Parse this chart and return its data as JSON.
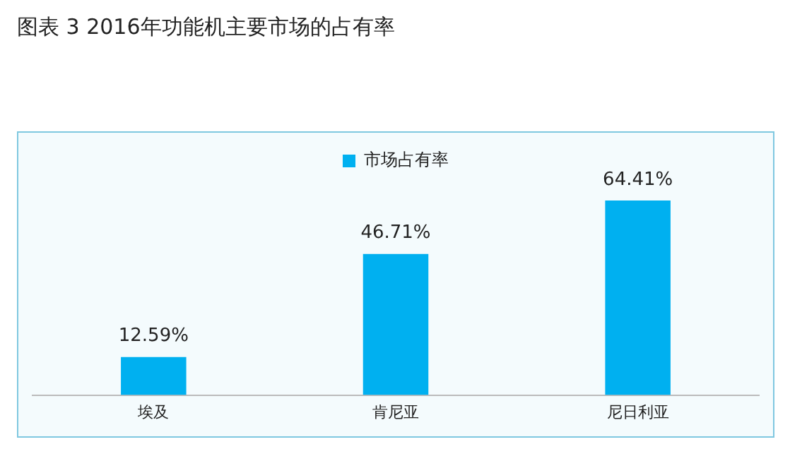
{
  "chart_data": {
    "type": "bar",
    "title": "图表 3 2016年功能机主要市场的占有率",
    "categories": [
      "埃及",
      "肯尼亚",
      "尼日利亚"
    ],
    "series": [
      {
        "name": "市场占有率",
        "color": "#00b0f0",
        "values": [
          12.59,
          46.71,
          64.41
        ],
        "value_labels": [
          "12.59%",
          "46.71%",
          "64.41%"
        ]
      }
    ],
    "legend": "top",
    "grid": false
  }
}
